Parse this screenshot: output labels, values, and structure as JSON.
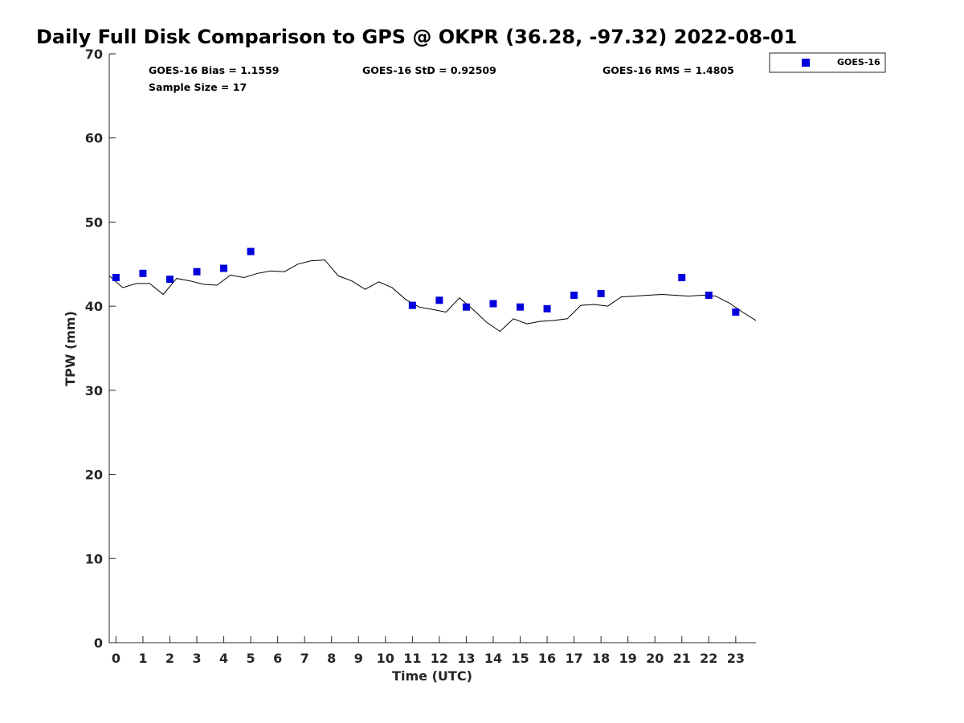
{
  "chart_data": {
    "type": "scatter",
    "title": "Daily Full Disk Comparison to GPS @ OKPR (36.28, -97.32) 2022-08-01",
    "xlabel": "Time (UTC)",
    "ylabel": "TPW (mm)",
    "xlim": [
      -0.25,
      23.75
    ],
    "ylim": [
      0,
      70
    ],
    "xticks": [
      0,
      1,
      2,
      3,
      4,
      5,
      6,
      7,
      8,
      9,
      10,
      11,
      12,
      13,
      14,
      15,
      16,
      17,
      18,
      19,
      20,
      21,
      22,
      23
    ],
    "yticks": [
      0,
      10,
      20,
      30,
      40,
      50,
      60,
      70
    ],
    "grid": false,
    "legend_position": "top-right-outside",
    "stats": {
      "bias": "GOES-16 Bias = 1.1559",
      "std": "GOES-16 StD = 0.92509",
      "rms": "GOES-16 RMS = 1.4805",
      "sample": "Sample Size = 17"
    },
    "series": [
      {
        "name": "GOES-16",
        "kind": "markers",
        "color": "#0000dd",
        "x": [
          0,
          1,
          2,
          3,
          4,
          5,
          11,
          12,
          13,
          14,
          15,
          16,
          17,
          18,
          21,
          22,
          23
        ],
        "y": [
          43.4,
          43.9,
          43.2,
          44.1,
          44.5,
          46.5,
          40.1,
          40.7,
          39.9,
          40.3,
          39.9,
          39.7,
          41.3,
          41.5,
          43.4,
          41.3,
          39.3
        ]
      },
      {
        "kind": "line",
        "color": "#000000",
        "x": [
          -0.25,
          0.25,
          0.75,
          1.25,
          1.75,
          2.25,
          2.75,
          3.25,
          3.75,
          4.25,
          4.75,
          5.25,
          5.75,
          6.25,
          6.75,
          7.25,
          7.75,
          8.25,
          8.75,
          9.25,
          9.75,
          10.25,
          10.75,
          11.25,
          11.75,
          12.25,
          12.75,
          13.25,
          13.75,
          14.25,
          14.75,
          15.25,
          15.75,
          16.25,
          16.75,
          17.25,
          17.75,
          18.25,
          18.75,
          19.25,
          19.75,
          20.25,
          20.75,
          21.25,
          21.75,
          22.25,
          22.75,
          23.25,
          23.75
        ],
        "y": [
          43.6,
          42.2,
          42.7,
          42.7,
          41.4,
          43.3,
          43.0,
          42.6,
          42.5,
          43.7,
          43.4,
          43.9,
          44.2,
          44.1,
          45.0,
          45.4,
          45.5,
          43.6,
          43.0,
          42.0,
          42.9,
          42.2,
          40.8,
          39.9,
          39.6,
          39.3,
          41.0,
          39.6,
          38.1,
          37.0,
          38.5,
          37.9,
          38.2,
          38.3,
          38.5,
          40.1,
          40.2,
          40.0,
          41.1,
          41.2,
          41.3,
          41.4,
          41.3,
          41.2,
          41.3,
          41.2,
          40.4,
          39.3,
          38.3
        ]
      }
    ]
  }
}
